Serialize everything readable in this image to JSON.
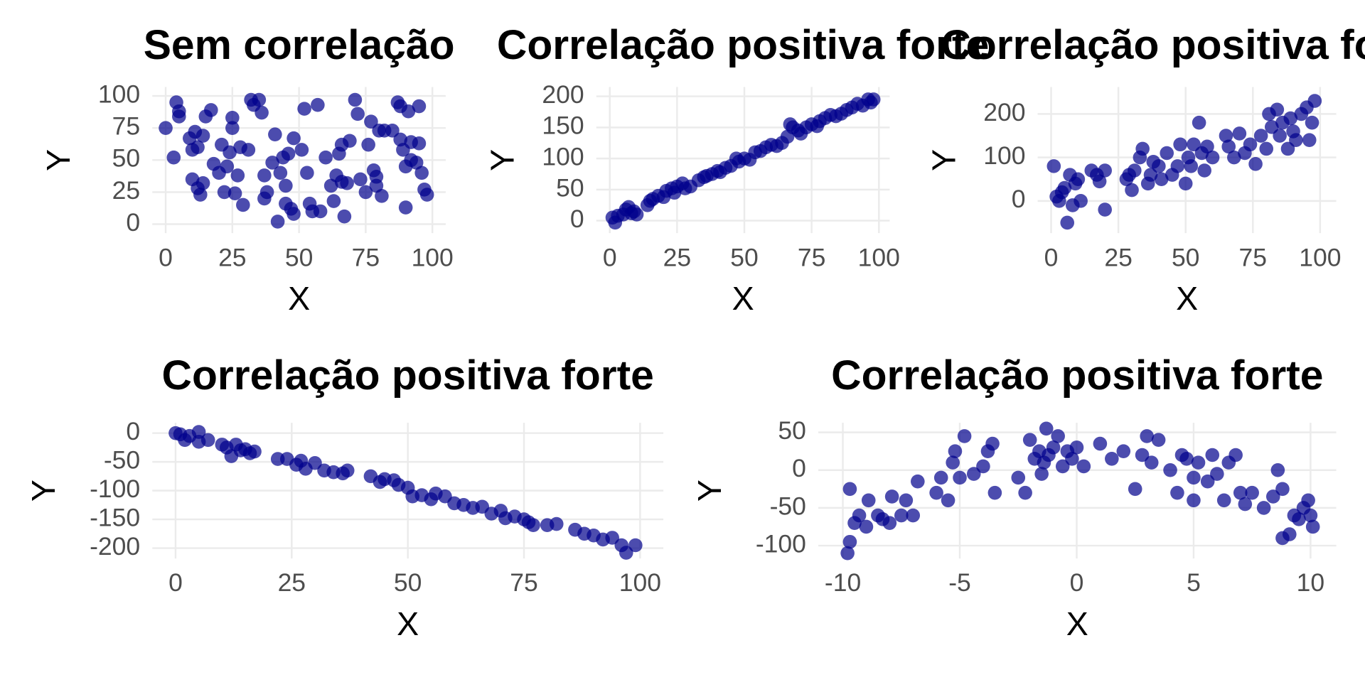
{
  "chart_data": [
    {
      "type": "scatter",
      "title": "Sem correlação",
      "x_label": "X",
      "y_label": "Y",
      "color": "#00008b",
      "x": [
        0,
        3,
        4,
        5,
        5,
        9,
        10,
        10,
        11,
        12,
        12,
        13,
        14,
        14,
        15,
        17,
        18,
        20,
        21,
        22,
        23,
        24,
        25,
        25,
        26,
        27,
        28,
        29,
        31,
        32,
        33,
        35,
        36,
        37,
        37,
        38,
        40,
        41,
        42,
        43,
        44,
        45,
        45,
        46,
        47,
        48,
        48,
        51,
        52,
        53,
        54,
        55,
        57,
        58,
        60,
        62,
        63,
        64,
        65,
        66,
        66,
        67,
        68,
        69,
        71,
        72,
        73,
        75,
        76,
        77,
        78,
        79,
        79,
        80,
        81,
        82,
        85,
        87,
        88,
        88,
        89,
        90,
        90,
        91,
        92,
        92,
        94,
        95,
        95,
        96,
        97,
        98
      ],
      "y": [
        75,
        52,
        95,
        88,
        84,
        67,
        35,
        58,
        72,
        60,
        28,
        23,
        32,
        69,
        84,
        89,
        47,
        40,
        62,
        25,
        45,
        56,
        83,
        75,
        24,
        38,
        60,
        15,
        58,
        97,
        93,
        97,
        87,
        20,
        38,
        25,
        48,
        70,
        2,
        40,
        52,
        30,
        16,
        55,
        12,
        67,
        8,
        58,
        90,
        40,
        16,
        10,
        93,
        10,
        52,
        30,
        18,
        38,
        55,
        33,
        62,
        6,
        32,
        65,
        97,
        86,
        35,
        25,
        62,
        80,
        42,
        37,
        30,
        73,
        22,
        73,
        73,
        95,
        92,
        66,
        58,
        45,
        13,
        88,
        64,
        50,
        48,
        92,
        63,
        40,
        27,
        23
      ],
      "xlim": [
        -5,
        105
      ],
      "ylim": [
        -7,
        107
      ],
      "xticks": [
        0,
        25,
        50,
        75,
        100
      ],
      "yticks": [
        0,
        25,
        50,
        75,
        100
      ]
    },
    {
      "type": "scatter",
      "title": "Correlação positiva forte",
      "x_label": "X",
      "y_label": "Y",
      "color": "#00008b",
      "x": [
        1,
        2,
        3,
        5,
        6,
        7,
        8,
        9,
        10,
        14,
        15,
        16,
        18,
        20,
        21,
        23,
        24,
        25,
        27,
        28,
        30,
        33,
        35,
        36,
        38,
        40,
        41,
        43,
        45,
        47,
        48,
        50,
        52,
        54,
        56,
        58,
        60,
        62,
        64,
        66,
        67,
        68,
        70,
        71,
        73,
        75,
        77,
        78,
        80,
        82,
        84,
        86,
        88,
        90,
        92,
        94,
        96,
        97,
        98
      ],
      "y": [
        5,
        -3,
        8,
        10,
        18,
        22,
        12,
        15,
        10,
        25,
        32,
        35,
        40,
        38,
        48,
        52,
        45,
        55,
        60,
        52,
        55,
        65,
        70,
        72,
        75,
        80,
        78,
        85,
        88,
        100,
        95,
        100,
        98,
        110,
        112,
        118,
        122,
        120,
        125,
        135,
        155,
        150,
        145,
        140,
        150,
        155,
        152,
        160,
        165,
        170,
        168,
        172,
        178,
        182,
        188,
        185,
        195,
        190,
        195
      ],
      "xlim": [
        -5,
        104
      ],
      "ylim": [
        -20,
        215
      ],
      "xticks": [
        0,
        25,
        50,
        75,
        100
      ],
      "yticks": [
        0,
        50,
        100,
        150,
        200
      ]
    },
    {
      "type": "scatter",
      "title": "Correlação positiva forte",
      "x_label": "X",
      "y_label": "Y",
      "color": "#00008b",
      "x": [
        1,
        2,
        3,
        4,
        5,
        6,
        7,
        8,
        9,
        10,
        11,
        15,
        17,
        18,
        20,
        20,
        28,
        29,
        30,
        31,
        33,
        34,
        36,
        37,
        38,
        40,
        41,
        43,
        45,
        47,
        48,
        50,
        51,
        52,
        53,
        55,
        56,
        57,
        58,
        60,
        65,
        66,
        68,
        70,
        72,
        74,
        76,
        78,
        80,
        81,
        82,
        84,
        85,
        86,
        88,
        89,
        90,
        91,
        93,
        95,
        96,
        97,
        98
      ],
      "y": [
        80,
        10,
        0,
        20,
        30,
        -50,
        60,
        -10,
        40,
        50,
        0,
        70,
        60,
        45,
        70,
        -20,
        50,
        60,
        25,
        70,
        100,
        120,
        40,
        60,
        90,
        80,
        50,
        110,
        60,
        80,
        130,
        40,
        100,
        80,
        130,
        180,
        110,
        70,
        125,
        100,
        150,
        125,
        100,
        155,
        110,
        130,
        85,
        150,
        120,
        200,
        170,
        210,
        150,
        180,
        120,
        190,
        160,
        140,
        200,
        215,
        140,
        180,
        230
      ],
      "xlim": [
        -5,
        106
      ],
      "ylim": [
        -74,
        262
      ],
      "xticks": [
        0,
        25,
        50,
        75,
        100
      ],
      "yticks": [
        0,
        100,
        200
      ]
    },
    {
      "type": "scatter",
      "title": "Correlação positiva forte",
      "x_label": "X",
      "y_label": "Y",
      "color": "#00008b",
      "x": [
        0,
        1,
        2,
        3,
        5,
        5,
        7,
        10,
        11,
        12,
        13,
        14,
        15,
        16,
        17,
        22,
        24,
        26,
        27,
        28,
        30,
        32,
        34,
        36,
        37,
        42,
        44,
        45,
        47,
        48,
        50,
        51,
        53,
        55,
        56,
        58,
        60,
        62,
        64,
        66,
        68,
        70,
        71,
        73,
        75,
        76,
        77,
        80,
        82,
        86,
        88,
        90,
        92,
        94,
        96,
        97,
        99
      ],
      "y": [
        0,
        -2,
        -12,
        -5,
        2,
        -15,
        -12,
        -20,
        -25,
        -40,
        -20,
        -30,
        -28,
        -35,
        -32,
        -45,
        -45,
        -55,
        -48,
        -62,
        -52,
        -65,
        -68,
        -70,
        -65,
        -75,
        -85,
        -80,
        -82,
        -90,
        -95,
        -110,
        -108,
        -115,
        -105,
        -110,
        -122,
        -125,
        -130,
        -128,
        -140,
        -135,
        -148,
        -145,
        -150,
        -155,
        -160,
        -160,
        -158,
        -168,
        -175,
        -178,
        -185,
        -182,
        -195,
        -208,
        -195
      ],
      "xlim": [
        -5,
        105
      ],
      "ylim": [
        -218,
        18
      ],
      "xticks": [
        0,
        25,
        50,
        75,
        100
      ],
      "yticks": [
        -200,
        -150,
        -100,
        -50,
        0
      ]
    },
    {
      "type": "scatter",
      "title": "Correlação positiva forte",
      "x_label": "X",
      "y_label": "Y",
      "color": "#00008b",
      "x": [
        -9.7,
        -9.8,
        -9.7,
        -9.5,
        -9.3,
        -9,
        -8.9,
        -8.5,
        -8.3,
        -8,
        -7.9,
        -7.5,
        -7.3,
        -7,
        -6.8,
        -6,
        -5.8,
        -5.5,
        -5.3,
        -5.2,
        -5,
        -4.8,
        -4.4,
        -4,
        -3.8,
        -3.6,
        -3.5,
        -2.5,
        -2.2,
        -2,
        -1.8,
        -1.6,
        -1.5,
        -1.4,
        -1.3,
        -1.2,
        -1,
        -0.8,
        -0.6,
        -0.4,
        -0.2,
        0,
        0.3,
        1,
        1.5,
        2,
        2.5,
        2.8,
        3,
        3.2,
        3.5,
        4,
        4.3,
        4.5,
        4.7,
        5,
        5,
        5.2,
        5.6,
        5.8,
        6,
        6.3,
        6.5,
        6.8,
        7,
        7.2,
        7.5,
        8,
        8.4,
        8.6,
        8.8,
        8.8,
        9.1,
        9.3,
        9.5,
        9.7,
        9.9,
        10,
        10.1
      ],
      "y": [
        -25,
        -110,
        -95,
        -70,
        -60,
        -75,
        -40,
        -60,
        -65,
        -70,
        -35,
        -60,
        -40,
        -60,
        -15,
        -30,
        -10,
        -40,
        10,
        25,
        -10,
        45,
        -5,
        5,
        25,
        35,
        -30,
        -10,
        -30,
        40,
        15,
        25,
        -5,
        10,
        55,
        20,
        30,
        45,
        5,
        25,
        15,
        30,
        5,
        35,
        15,
        25,
        -25,
        20,
        45,
        10,
        40,
        0,
        -30,
        20,
        15,
        -10,
        -40,
        10,
        -15,
        20,
        -5,
        -40,
        10,
        20,
        -30,
        -45,
        -30,
        -50,
        -35,
        0,
        -25,
        -90,
        -85,
        -60,
        -65,
        -50,
        -40,
        -60,
        -75
      ],
      "xlim": [
        -11.05,
        11.1
      ],
      "ylim": [
        -117,
        62.7
      ],
      "xticks": [
        -10,
        -5,
        0,
        5,
        10
      ],
      "yticks": [
        -100,
        -50,
        0,
        50
      ]
    }
  ]
}
